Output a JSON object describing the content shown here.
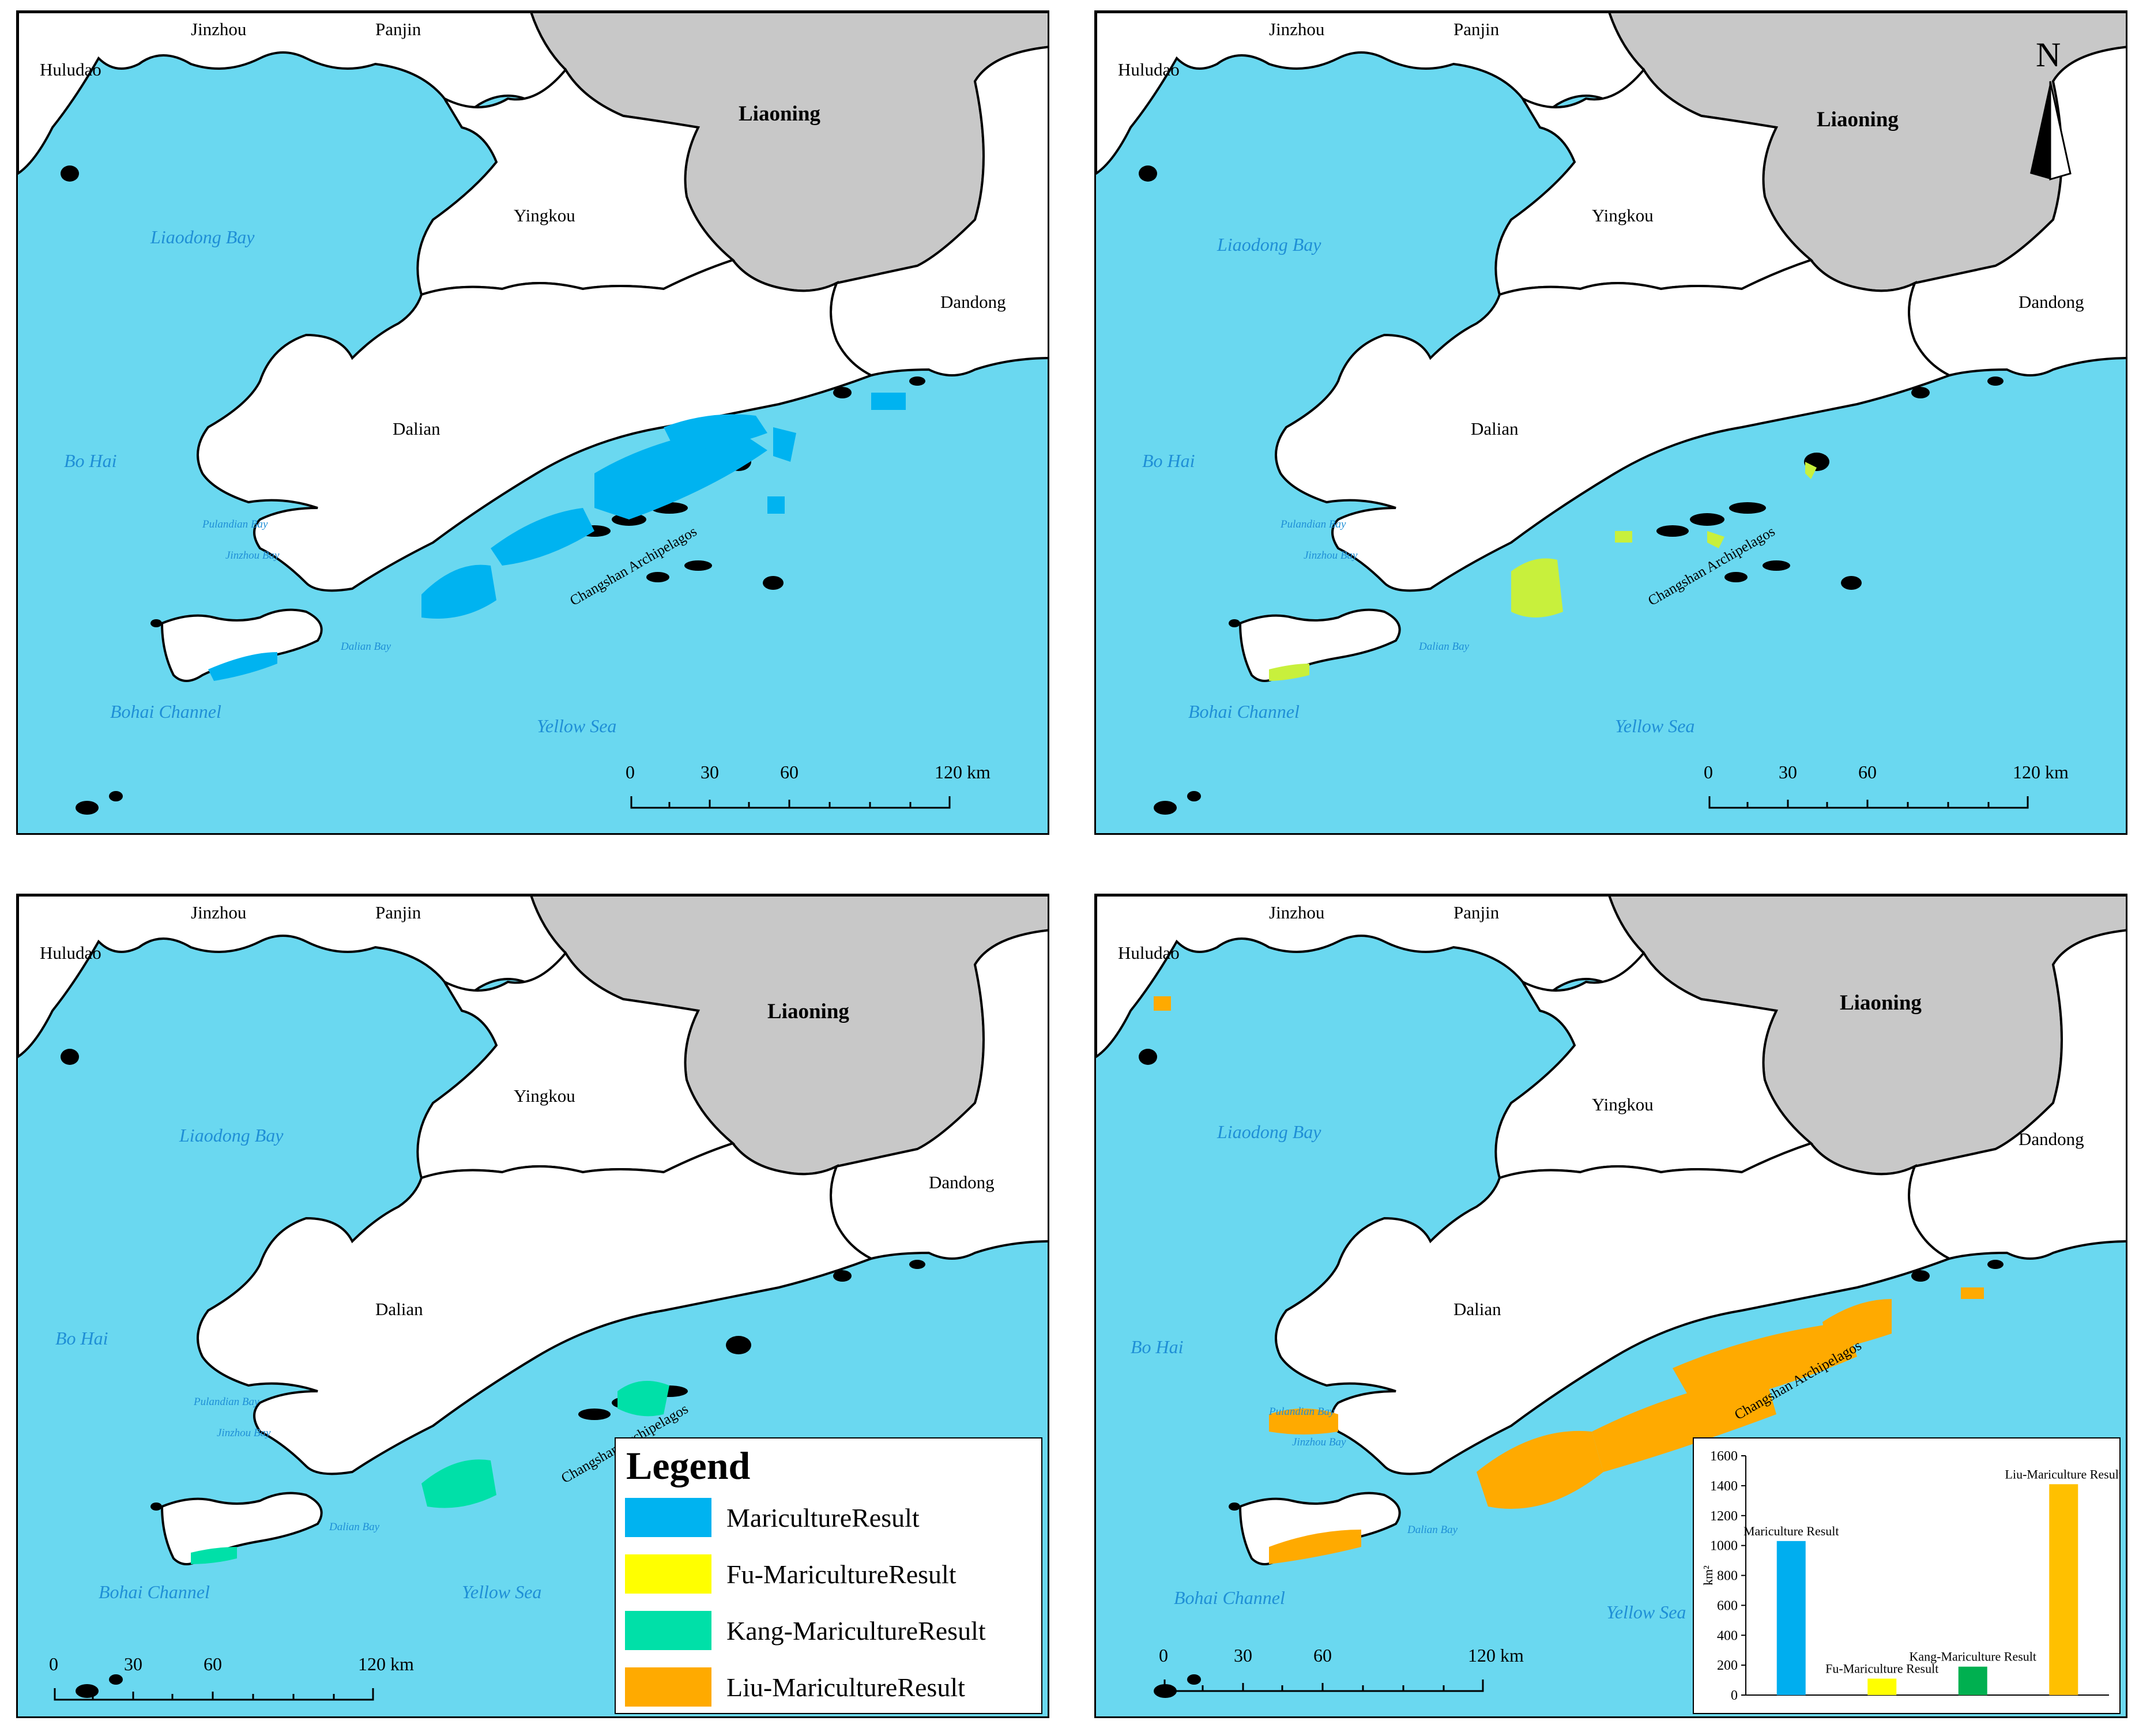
{
  "colors": {
    "sea": "#6ad8f0",
    "land": "#ffffff",
    "other_province": "#c8c8c8",
    "mariculture": "#00b3f0",
    "fu": "#ffff00",
    "kang": "#00e0a8",
    "liu": "#ffaa00"
  },
  "labels": {
    "huludao": "Huludao",
    "jinzhou": "Jinzhou",
    "panjin": "Panjin",
    "liaoning": "Liaoning",
    "yingkou": "Yingkou",
    "dandong": "Dandong",
    "dalian": "Dalian",
    "liaodong_bay": "Liaodong Bay",
    "bo_hai": "Bo Hai",
    "pulandian_bay": "Pulandian Bay",
    "jinzhou_bay": "Jinzhou Bay",
    "dalian_bay": "Dalian Bay",
    "bohai_channel": "Bohai Channel",
    "yellow_sea": "Yellow Sea",
    "changshan": "Changshan Archipelagos"
  },
  "scalebar": {
    "ticks": [
      "0",
      "30",
      "60",
      "120 km"
    ]
  },
  "north_arrow": "N",
  "legend": {
    "title": "Legend",
    "items": [
      {
        "label": "MaricultureResult",
        "color": "#00b3f0"
      },
      {
        "label": "Fu-MaricultureResult",
        "color": "#ffff00"
      },
      {
        "label": "Kang-MaricultureResult",
        "color": "#00e0a8"
      },
      {
        "label": "Liu-MaricultureResult",
        "color": "#ffaa00"
      }
    ]
  },
  "chart_data": {
    "type": "bar",
    "categories": [
      "Mariculture Result",
      "Fu-Mariculture Result",
      "Kang-Mariculture Result",
      "Liu-Mariculture Result"
    ],
    "values": [
      1030,
      110,
      190,
      1410
    ],
    "colors": [
      "#00aeef",
      "#ffff00",
      "#00b050",
      "#ffc000"
    ],
    "ylabel": "km²",
    "ylim": [
      0,
      1600
    ],
    "yticks": [
      "0",
      "200",
      "400",
      "600",
      "800",
      "1000",
      "1200",
      "1400",
      "1600"
    ]
  }
}
